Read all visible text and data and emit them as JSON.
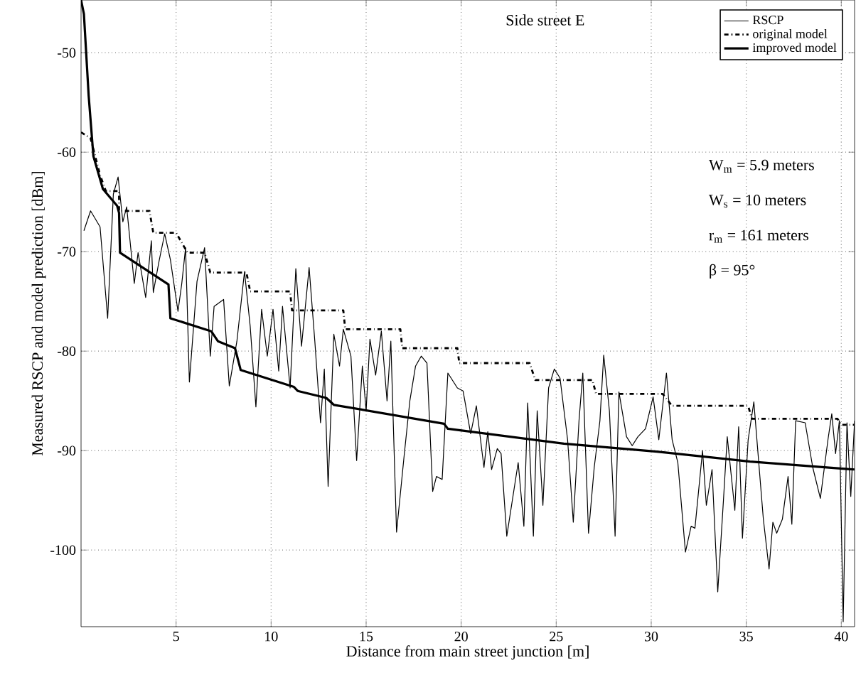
{
  "chart_data": {
    "type": "line",
    "title": "Side street E",
    "xlabel": "Distance from main street junction [m]",
    "ylabel": "Measured RSCP and model prediction [dBm]",
    "annotations": [
      "W$_{m}$ =  5.9 meters",
      "W$_{s}$ =   10 meters",
      "r$_{m}$ =   161 meters",
      "β =  95°"
    ],
    "xlim": [
      0,
      40.7
    ],
    "ylim": [
      -107.7,
      -44.7
    ],
    "xticks": [
      5,
      10,
      15,
      20,
      25,
      30,
      35,
      40
    ],
    "yticks": [
      -50,
      -60,
      -70,
      -80,
      -90,
      -100
    ],
    "grid": true,
    "legend": "top right",
    "series": [
      {
        "name": "RSCP",
        "color": "#000000",
        "line_style": "solid",
        "x": [
          0.15,
          0.5,
          1.0,
          1.4,
          1.7,
          1.95,
          2.2,
          2.4,
          2.8,
          3.0,
          3.4,
          3.7,
          3.8,
          4.1,
          4.4,
          4.7,
          5.1,
          5.3,
          5.5,
          5.7,
          6.1,
          6.5,
          6.8,
          7.0,
          7.5,
          7.8,
          8.2,
          8.6,
          8.9,
          9.2,
          9.5,
          9.8,
          10.1,
          10.4,
          10.6,
          11.0,
          11.3,
          11.6,
          12.0,
          12.3,
          12.6,
          12.8,
          13.0,
          13.3,
          13.6,
          13.8,
          14.2,
          14.5,
          14.8,
          15.0,
          15.2,
          15.5,
          15.8,
          16.1,
          16.3,
          16.6,
          17.0,
          17.3,
          17.6,
          17.9,
          18.2,
          18.5,
          18.7,
          19.0,
          19.3,
          19.8,
          20.1,
          20.5,
          20.8,
          21.2,
          21.4,
          21.6,
          21.9,
          22.1,
          22.4,
          23.0,
          23.3,
          23.5,
          23.8,
          24.0,
          24.3,
          24.6,
          24.9,
          25.2,
          25.6,
          25.9,
          26.2,
          26.4,
          26.7,
          27.0,
          27.3,
          27.5,
          27.8,
          28.1,
          28.3,
          28.7,
          29.0,
          29.3,
          29.7,
          30.1,
          30.4,
          30.8,
          31.1,
          31.4,
          31.8,
          32.1,
          32.3,
          32.7,
          32.9,
          33.2,
          33.5,
          33.8,
          34.0,
          34.4,
          34.6,
          34.8,
          35.1,
          35.4,
          35.7,
          35.9,
          36.2,
          36.4,
          36.6,
          36.9,
          37.2,
          37.4,
          37.6,
          38.1,
          38.5,
          38.9,
          39.3,
          39.5,
          39.7,
          39.9,
          40.1,
          40.3,
          40.5,
          40.7
        ],
        "values": [
          -67.9,
          -65.9,
          -67.5,
          -76.7,
          -64.2,
          -62.5,
          -67.0,
          -65.5,
          -73.2,
          -70.1,
          -74.6,
          -68.9,
          -74.1,
          -71.0,
          -68.2,
          -70.8,
          -76.0,
          -73.2,
          -69.6,
          -83.1,
          -73.0,
          -69.6,
          -80.5,
          -75.5,
          -74.8,
          -83.5,
          -79.0,
          -72.0,
          -77.5,
          -85.6,
          -75.8,
          -80.5,
          -75.8,
          -82.0,
          -75.5,
          -83.7,
          -71.7,
          -79.5,
          -71.6,
          -79.0,
          -87.2,
          -81.8,
          -93.6,
          -78.3,
          -81.5,
          -77.8,
          -80.5,
          -91.0,
          -81.5,
          -86.0,
          -78.8,
          -82.4,
          -78.0,
          -85.0,
          -79.0,
          -98.2,
          -90.5,
          -85.0,
          -81.5,
          -80.5,
          -81.2,
          -94.1,
          -92.6,
          -92.9,
          -82.2,
          -83.7,
          -84.0,
          -88.3,
          -85.5,
          -91.7,
          -88.1,
          -91.9,
          -89.8,
          -90.3,
          -98.6,
          -91.2,
          -97.6,
          -85.2,
          -98.6,
          -86.0,
          -95.5,
          -83.7,
          -81.8,
          -82.7,
          -88.9,
          -97.2,
          -87.0,
          -82.2,
          -98.3,
          -91.7,
          -87.0,
          -80.4,
          -86.0,
          -98.6,
          -84.1,
          -88.6,
          -89.5,
          -88.6,
          -87.8,
          -84.6,
          -88.9,
          -82.2,
          -88.9,
          -91.2,
          -100.2,
          -97.6,
          -97.8,
          -90.0,
          -95.5,
          -91.9,
          -104.2,
          -95.0,
          -88.6,
          -96.0,
          -87.6,
          -98.8,
          -88.9,
          -85.1,
          -92.2,
          -96.9,
          -101.9,
          -97.2,
          -98.3,
          -96.9,
          -92.6,
          -97.4,
          -87.0,
          -87.2,
          -91.7,
          -94.8,
          -88.9,
          -86.3,
          -90.3,
          -87.0,
          -107.2,
          -87.2,
          -94.6,
          -87.0
        ]
      },
      {
        "name": "original model",
        "color": "#000000",
        "line_style": "dashdot",
        "x": [
          0.0,
          0.5,
          1.0,
          1.3,
          2.0,
          2.0,
          3.6,
          3.8,
          5.0,
          5.6,
          6.5,
          6.8,
          8.7,
          8.9,
          11.0,
          11.1,
          13.8,
          13.9,
          16.8,
          16.9,
          19.8,
          19.9,
          23.6,
          23.9,
          26.9,
          27.1,
          30.6,
          31.1,
          35.1,
          35.3,
          39.8,
          40.0,
          40.7
        ],
        "values": [
          -58.0,
          -58.6,
          -62.3,
          -63.9,
          -63.9,
          -65.9,
          -65.9,
          -68.1,
          -68.1,
          -70.1,
          -70.1,
          -72.1,
          -72.1,
          -74.0,
          -74.0,
          -75.9,
          -75.9,
          -77.8,
          -77.8,
          -79.7,
          -79.7,
          -81.2,
          -81.2,
          -82.9,
          -82.9,
          -84.3,
          -84.3,
          -85.5,
          -85.5,
          -86.8,
          -86.8,
          -87.4,
          -87.4
        ]
      },
      {
        "name": "improved model",
        "color": "#000000",
        "line_style": "solid",
        "x": [
          0.0,
          0.15,
          0.4,
          0.65,
          1.15,
          1.9,
          2.0,
          2.05,
          4.6,
          4.7,
          6.85,
          7.2,
          8.1,
          8.4,
          11.2,
          11.4,
          12.9,
          13.3,
          19.1,
          19.3,
          25.4,
          30.3,
          35.2,
          40.7
        ],
        "values": [
          -44.7,
          -46.1,
          -54.3,
          -60.4,
          -63.7,
          -65.4,
          -66.1,
          -70.1,
          -73.3,
          -76.7,
          -78.0,
          -79.0,
          -79.7,
          -81.9,
          -83.6,
          -84.0,
          -84.7,
          -85.4,
          -87.3,
          -87.8,
          -89.3,
          -90.1,
          -91.1,
          -91.9
        ]
      }
    ]
  }
}
